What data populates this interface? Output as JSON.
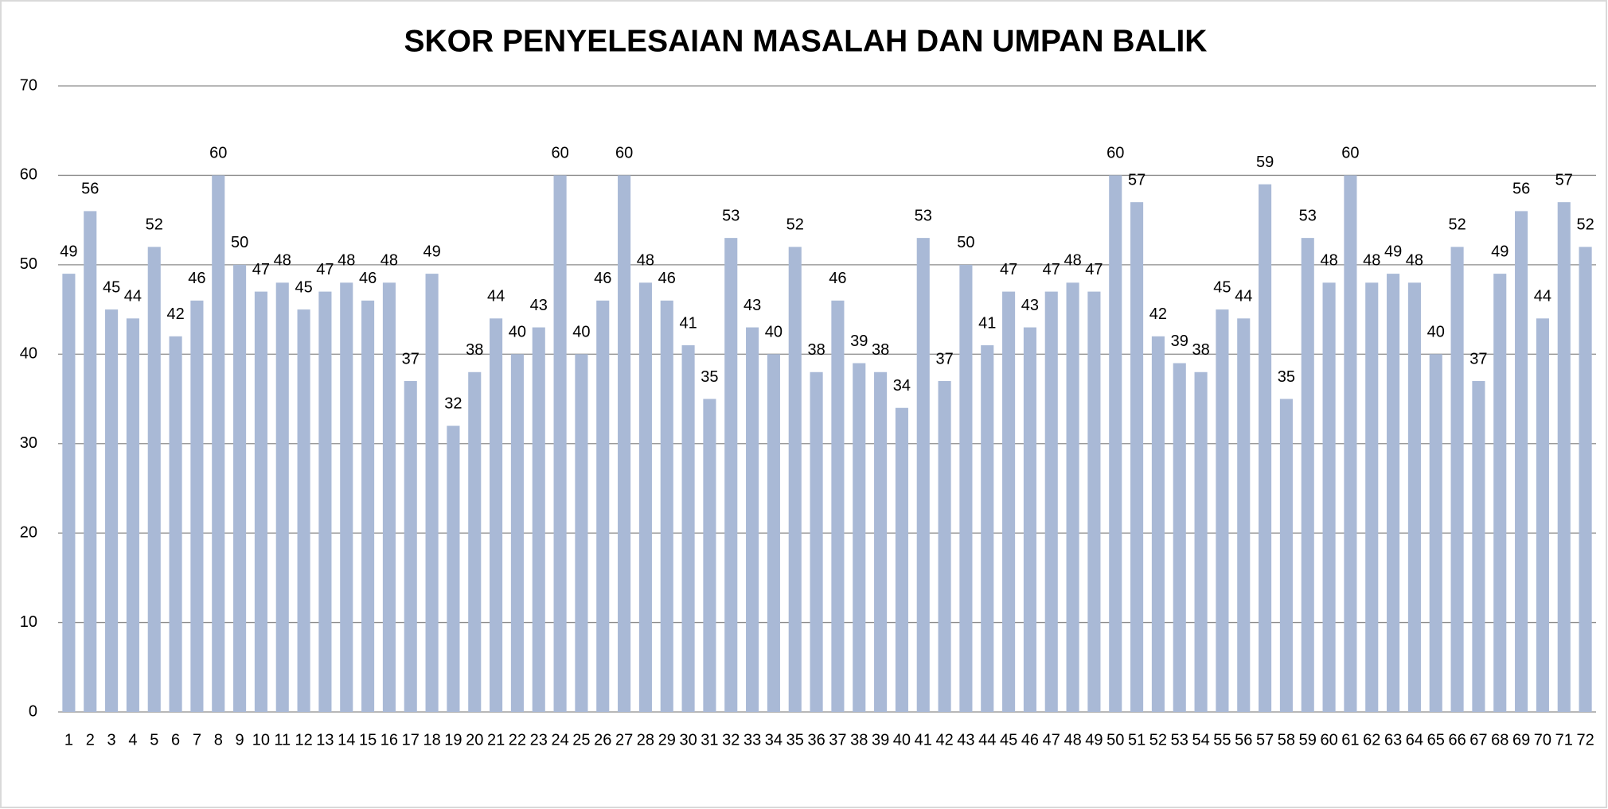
{
  "chart_data": {
    "type": "bar",
    "title": "SKOR PENYELESAIAN MASALAH DAN UMPAN BALIK",
    "categories": [
      "1",
      "2",
      "3",
      "4",
      "5",
      "6",
      "7",
      "8",
      "9",
      "10",
      "11",
      "12",
      "13",
      "14",
      "15",
      "16",
      "17",
      "18",
      "19",
      "20",
      "21",
      "22",
      "23",
      "24",
      "25",
      "26",
      "27",
      "28",
      "29",
      "30",
      "31",
      "32",
      "33",
      "34",
      "35",
      "36",
      "37",
      "38",
      "39",
      "40",
      "41",
      "42",
      "43",
      "44",
      "45",
      "46",
      "47",
      "48",
      "49",
      "50",
      "51",
      "52",
      "53",
      "54",
      "55",
      "56",
      "57",
      "58",
      "59",
      "60",
      "61",
      "62",
      "63",
      "64",
      "65",
      "66",
      "67",
      "68",
      "69",
      "70",
      "71",
      "72"
    ],
    "values": [
      49,
      56,
      45,
      44,
      52,
      42,
      46,
      60,
      50,
      47,
      48,
      45,
      47,
      48,
      46,
      48,
      37,
      49,
      32,
      38,
      44,
      40,
      43,
      60,
      40,
      46,
      60,
      48,
      46,
      41,
      35,
      53,
      43,
      40,
      52,
      38,
      46,
      39,
      38,
      34,
      53,
      37,
      50,
      41,
      47,
      43,
      47,
      48,
      47,
      60,
      57,
      42,
      39,
      38,
      45,
      44,
      59,
      35,
      53,
      48,
      60,
      48,
      49,
      48,
      40,
      52,
      37,
      49,
      56,
      44,
      57,
      52
    ],
    "color": "#a9b9d6",
    "ylim": [
      0,
      70
    ],
    "yticks": [
      0,
      10,
      20,
      30,
      40,
      50,
      60,
      70
    ],
    "grid": true
  }
}
